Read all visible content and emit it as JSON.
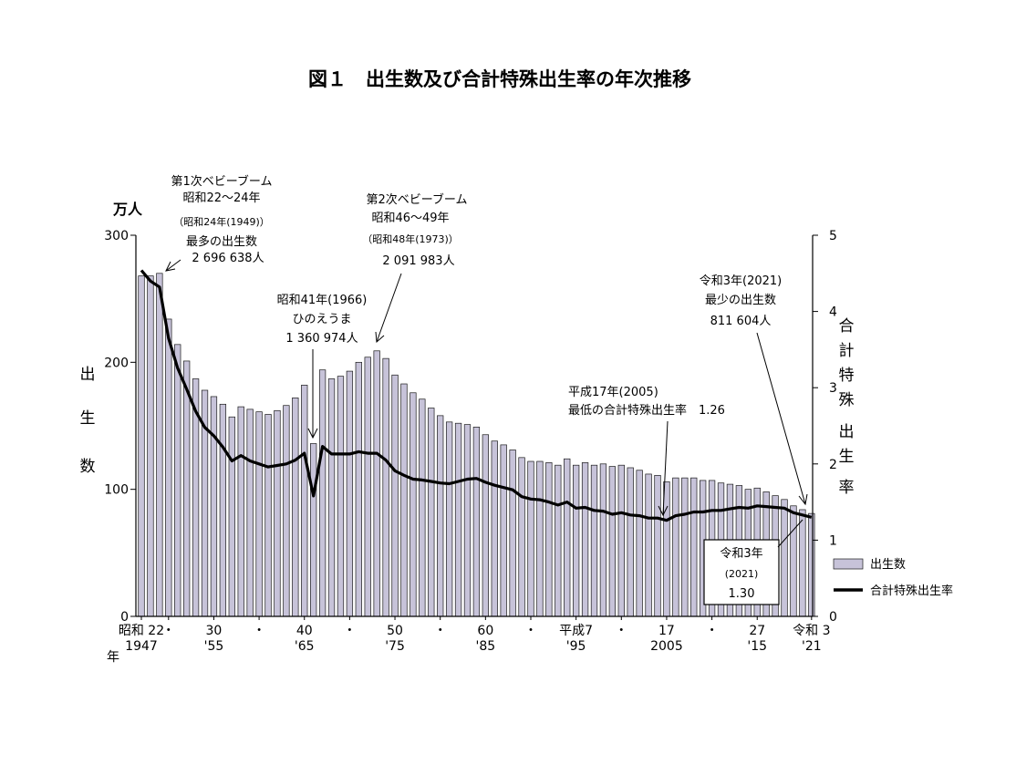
{
  "chart_data": {
    "type": "bar",
    "title": "図１　出生数及び合計特殊出生率の年次推移",
    "left_axis_unit": "万人",
    "left_axis_label": [
      "出",
      "生",
      "数"
    ],
    "right_axis_label": [
      "合",
      "計",
      "特",
      "殊",
      "出",
      "生",
      "率"
    ],
    "ylim_left": [
      0,
      300
    ],
    "ylim_right": [
      0,
      5
    ],
    "left_ticks": [
      "0",
      "100",
      "200",
      "300"
    ],
    "right_ticks": [
      "0",
      "1",
      "2",
      "3",
      "4",
      "5"
    ],
    "x_tick_labels": [
      {
        "year": 1947,
        "top": "昭和 22",
        "bottom": "1947"
      },
      {
        "year": 1950,
        "top": "・",
        "bottom": ""
      },
      {
        "year": 1955,
        "top": "30",
        "bottom": "'55"
      },
      {
        "year": 1960,
        "top": "・",
        "bottom": ""
      },
      {
        "year": 1965,
        "top": "40",
        "bottom": "'65"
      },
      {
        "year": 1970,
        "top": "・",
        "bottom": ""
      },
      {
        "year": 1975,
        "top": "50",
        "bottom": "'75"
      },
      {
        "year": 1980,
        "top": "・",
        "bottom": ""
      },
      {
        "year": 1985,
        "top": "60",
        "bottom": "'85"
      },
      {
        "year": 1990,
        "top": "・",
        "bottom": ""
      },
      {
        "year": 1995,
        "top": "平成7",
        "bottom": "'95"
      },
      {
        "year": 2000,
        "top": "・",
        "bottom": ""
      },
      {
        "year": 2005,
        "top": "17",
        "bottom": "2005"
      },
      {
        "year": 2010,
        "top": "・",
        "bottom": ""
      },
      {
        "year": 2015,
        "top": "27",
        "bottom": "'15"
      },
      {
        "year": 2021,
        "top": "令和 3",
        "bottom": "'21"
      }
    ],
    "x_axis_year_char": "年",
    "legend": [
      "出生数",
      "合計特殊出生率"
    ],
    "legend_position": "lower-right",
    "series": [
      {
        "name": "出生数",
        "type": "bar",
        "axis": "left",
        "x": [
          1947,
          1948,
          1949,
          1950,
          1951,
          1952,
          1953,
          1954,
          1955,
          1956,
          1957,
          1958,
          1959,
          1960,
          1961,
          1962,
          1963,
          1964,
          1965,
          1966,
          1967,
          1968,
          1969,
          1970,
          1971,
          1972,
          1973,
          1974,
          1975,
          1976,
          1977,
          1978,
          1979,
          1980,
          1981,
          1982,
          1983,
          1984,
          1985,
          1986,
          1987,
          1988,
          1989,
          1990,
          1991,
          1992,
          1993,
          1994,
          1995,
          1996,
          1997,
          1998,
          1999,
          2000,
          2001,
          2002,
          2003,
          2004,
          2005,
          2006,
          2007,
          2008,
          2009,
          2010,
          2011,
          2012,
          2013,
          2014,
          2015,
          2016,
          2017,
          2018,
          2019,
          2020,
          2021
        ],
        "values": [
          268,
          268,
          270,
          234,
          214,
          201,
          187,
          178,
          173,
          167,
          157,
          165,
          163,
          161,
          159,
          162,
          166,
          172,
          182,
          136,
          194,
          187,
          189,
          193,
          200,
          204,
          209,
          203,
          190,
          183,
          176,
          171,
          164,
          158,
          153,
          152,
          151,
          149,
          143,
          138,
          135,
          131,
          125,
          122,
          122,
          121,
          119,
          124,
          119,
          121,
          119,
          120,
          118,
          119,
          117,
          115,
          112,
          111,
          106,
          109,
          109,
          109,
          107,
          107,
          105,
          104,
          103,
          100,
          101,
          98,
          95,
          92,
          87,
          84,
          81
        ]
      },
      {
        "name": "合計特殊出生率",
        "type": "line",
        "axis": "right",
        "x": [
          1947,
          1948,
          1949,
          1950,
          1951,
          1952,
          1953,
          1954,
          1955,
          1956,
          1957,
          1958,
          1959,
          1960,
          1961,
          1962,
          1963,
          1964,
          1965,
          1966,
          1967,
          1968,
          1969,
          1970,
          1971,
          1972,
          1973,
          1974,
          1975,
          1976,
          1977,
          1978,
          1979,
          1980,
          1981,
          1982,
          1983,
          1984,
          1985,
          1986,
          1987,
          1988,
          1989,
          1990,
          1991,
          1992,
          1993,
          1994,
          1995,
          1996,
          1997,
          1998,
          1999,
          2000,
          2001,
          2002,
          2003,
          2004,
          2005,
          2006,
          2007,
          2008,
          2009,
          2010,
          2011,
          2012,
          2013,
          2014,
          2015,
          2016,
          2017,
          2018,
          2019,
          2020,
          2021
        ],
        "values": [
          4.54,
          4.4,
          4.32,
          3.65,
          3.26,
          2.98,
          2.69,
          2.48,
          2.37,
          2.22,
          2.04,
          2.11,
          2.04,
          2.0,
          1.96,
          1.98,
          2.0,
          2.05,
          2.14,
          1.58,
          2.23,
          2.13,
          2.13,
          2.13,
          2.16,
          2.14,
          2.14,
          2.05,
          1.91,
          1.85,
          1.8,
          1.79,
          1.77,
          1.75,
          1.74,
          1.77,
          1.8,
          1.81,
          1.76,
          1.72,
          1.69,
          1.66,
          1.57,
          1.54,
          1.53,
          1.5,
          1.46,
          1.5,
          1.42,
          1.43,
          1.39,
          1.38,
          1.34,
          1.36,
          1.33,
          1.32,
          1.29,
          1.29,
          1.26,
          1.32,
          1.34,
          1.37,
          1.37,
          1.39,
          1.39,
          1.41,
          1.43,
          1.42,
          1.45,
          1.44,
          1.43,
          1.42,
          1.36,
          1.33,
          1.3
        ]
      }
    ],
    "annotations": {
      "boom1": {
        "lines": [
          "第1次ベビーブーム",
          "昭和22～24年",
          "（昭和24年(1949)）",
          "最多の出生数",
          "2 696 638人"
        ]
      },
      "hinoeuma": {
        "lines": [
          "昭和41年(1966)",
          "ひのえうま",
          "1 360 974人"
        ]
      },
      "boom2": {
        "lines": [
          "第2次ベビーブーム",
          "昭和46～49年",
          "（昭和48年(1973)）",
          "2 091 983人"
        ]
      },
      "low_tfr": {
        "lines": [
          "平成17年(2005)",
          "最低の合計特殊出生率　1.26"
        ]
      },
      "min_births": {
        "lines": [
          "令和3年(2021)",
          "最少の出生数",
          "811 604人"
        ]
      },
      "box_2021": {
        "lines": [
          "令和3年",
          "(2021)",
          "1.30"
        ]
      }
    },
    "colors": {
      "bar_fill": "#c7c3d9",
      "bar_stroke": "#1a1a1a",
      "line": "#000000"
    }
  }
}
